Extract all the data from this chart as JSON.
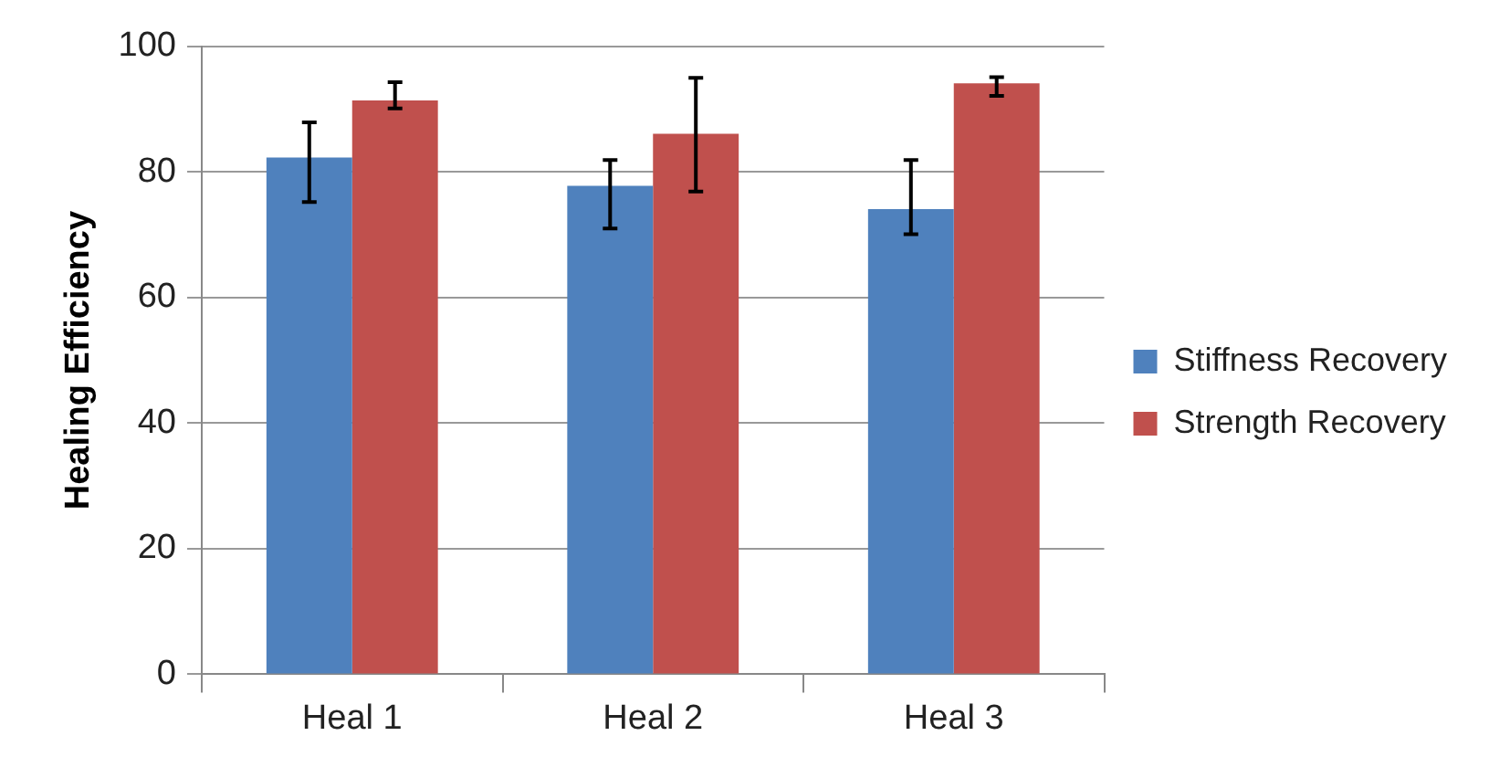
{
  "chart_data": {
    "type": "bar",
    "ylabel": "Healing Efficiency",
    "categories": [
      "Heal 1",
      "Heal 2",
      "Heal 3"
    ],
    "series": [
      {
        "name": "Stiffness Recovery",
        "color": "#4f81bd",
        "values": [
          82.3,
          77.8,
          74.1
        ],
        "errors": [
          [
            75.2,
            87.9
          ],
          [
            71.0,
            81.9
          ],
          [
            70.1,
            81.9
          ]
        ]
      },
      {
        "name": "Strength Recovery",
        "color": "#c0504d",
        "values": [
          91.4,
          86.1,
          94.1
        ],
        "errors": [
          [
            90.1,
            94.3
          ],
          [
            76.9,
            95.0
          ],
          [
            92.1,
            95.1
          ]
        ]
      }
    ],
    "ylim": [
      0,
      100
    ],
    "yticks": [
      0,
      20,
      40,
      60,
      80,
      100
    ],
    "grid": "y",
    "legend": "right"
  }
}
